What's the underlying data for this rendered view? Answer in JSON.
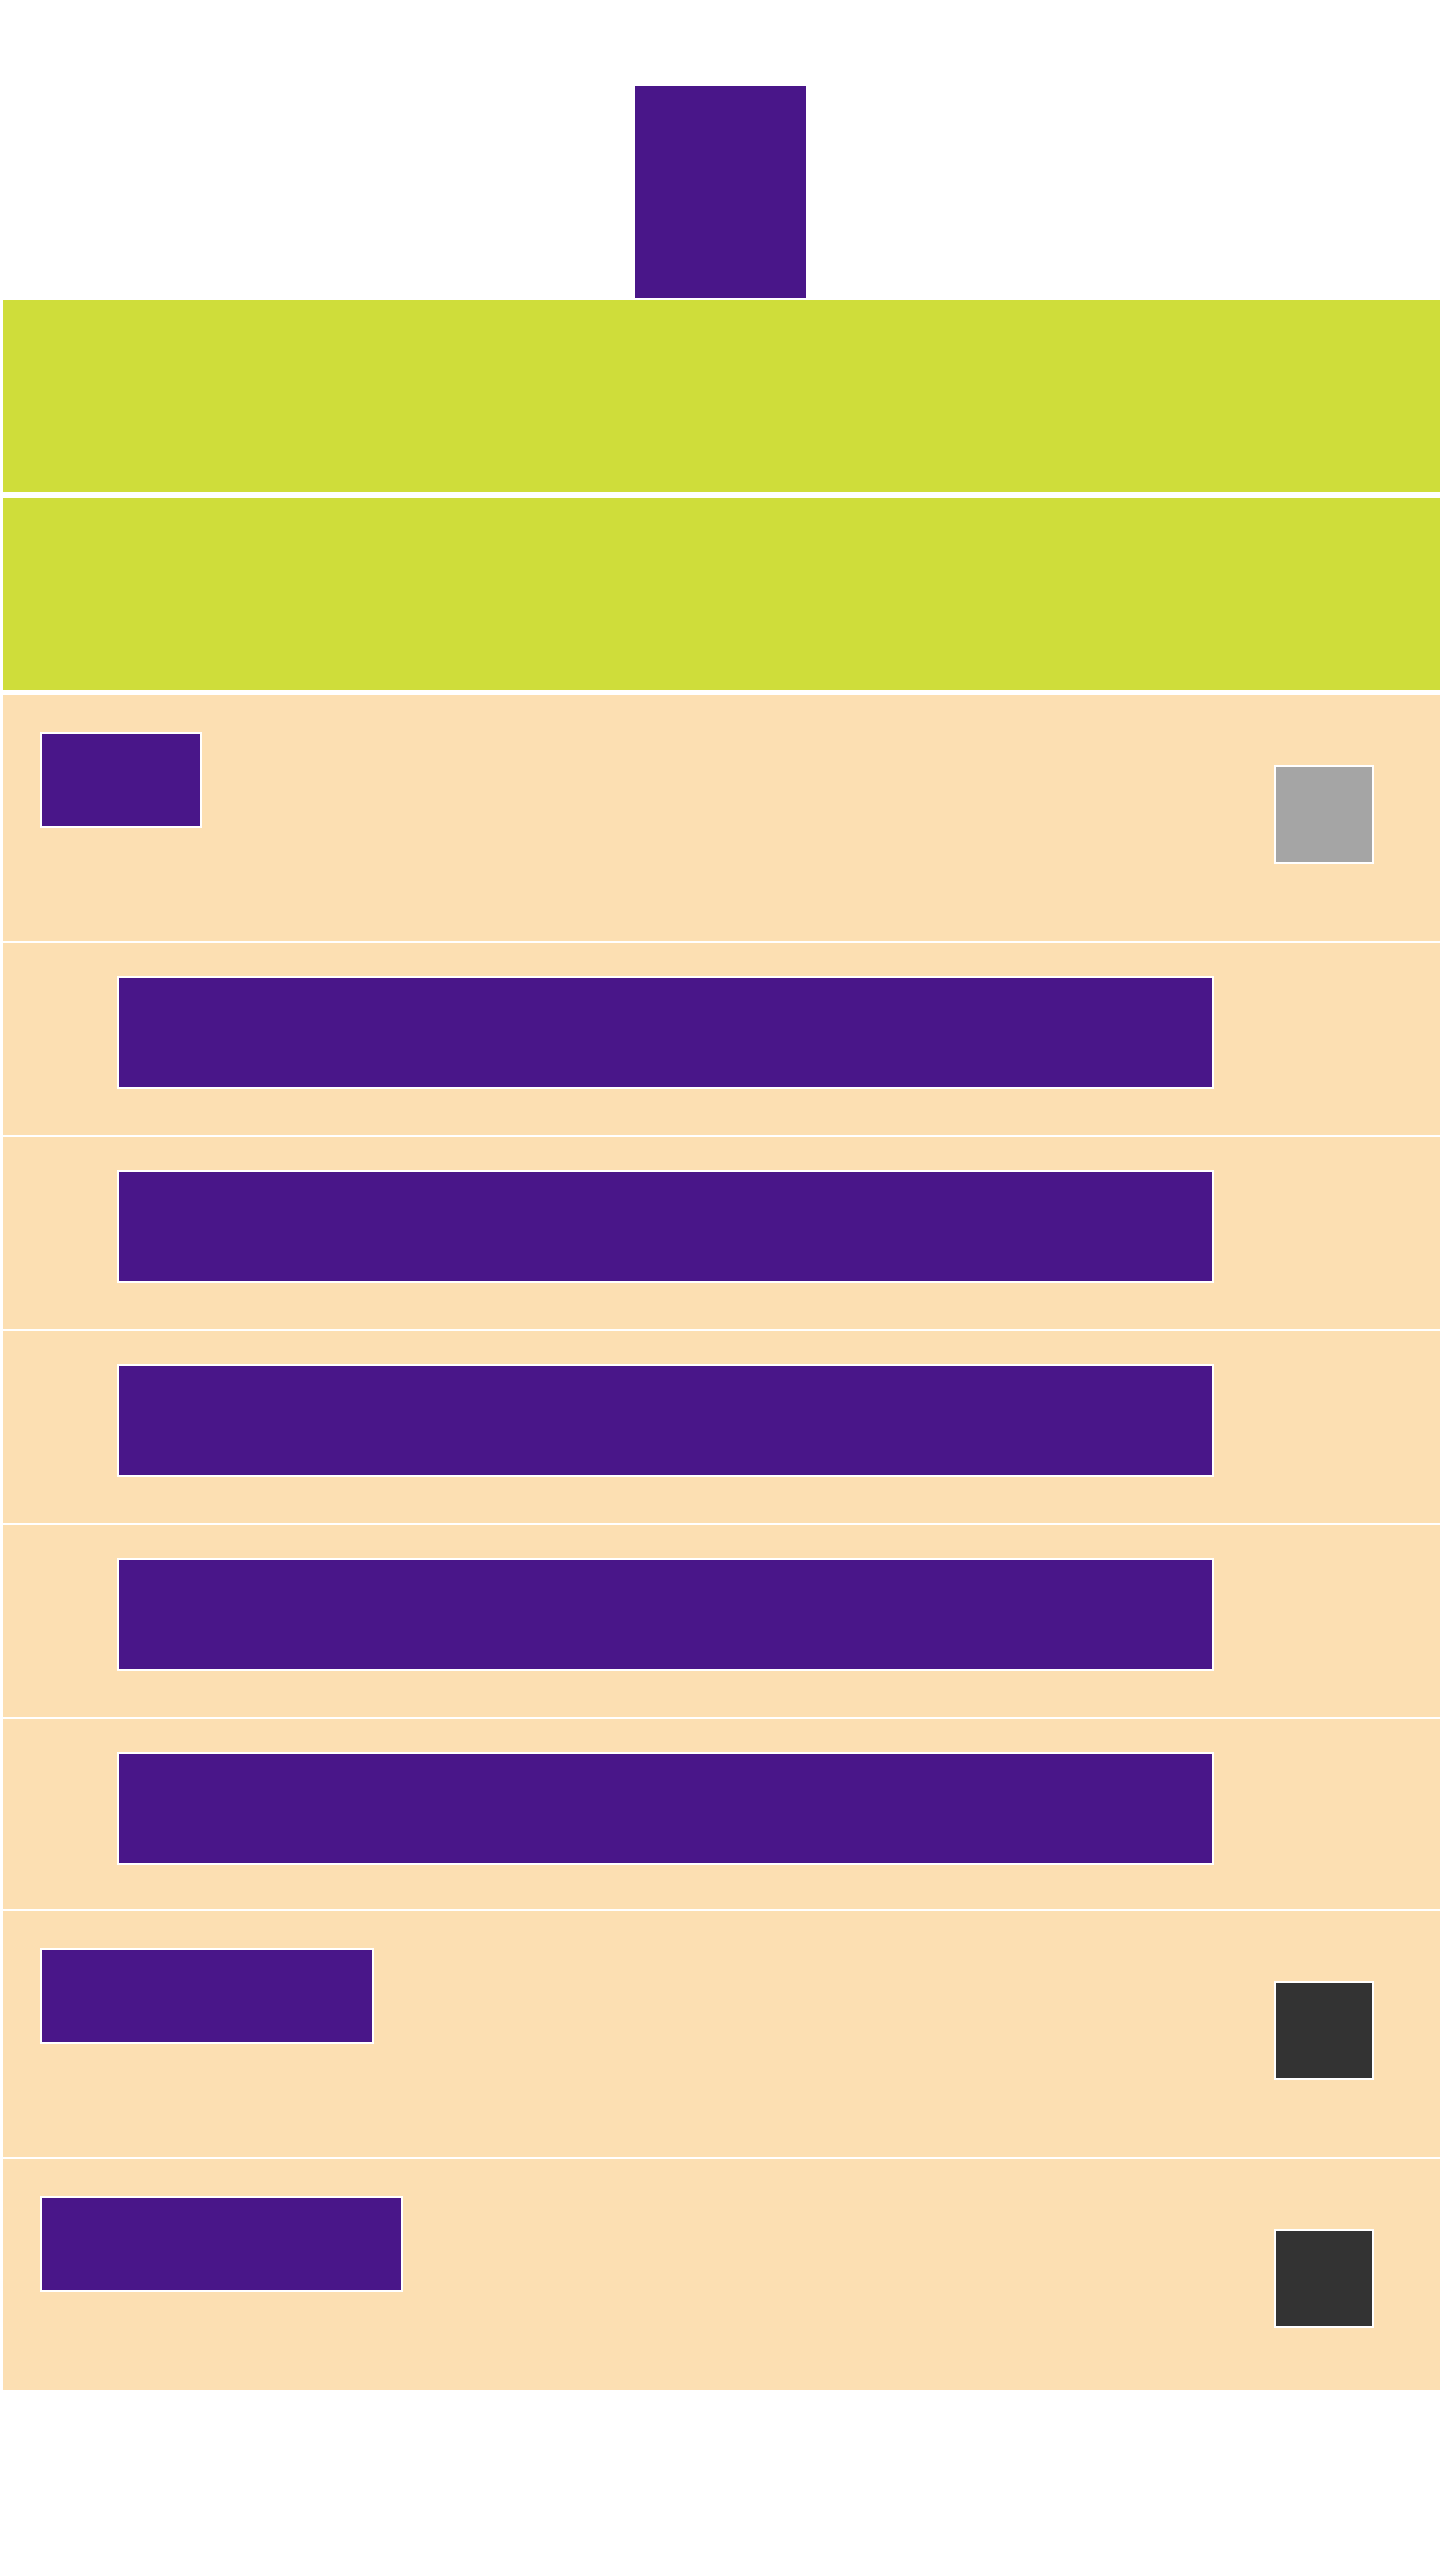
{
  "colors": {
    "accent": "#491689",
    "banner": "#cfdd3a",
    "row_background": "#fcdfb2",
    "divider": "#ffffff",
    "toggle_off": "#a5a5a5",
    "toggle_on": "#333333"
  },
  "header": {
    "logo_icon": "app-logo-icon"
  },
  "banners": [
    {
      "name": "banner-top"
    },
    {
      "name": "banner-bottom"
    }
  ],
  "settings": {
    "rows": [
      {
        "type": "toggle",
        "state": "off"
      },
      {
        "type": "child"
      },
      {
        "type": "child"
      },
      {
        "type": "child"
      },
      {
        "type": "child"
      },
      {
        "type": "child"
      },
      {
        "type": "toggle",
        "state": "on"
      },
      {
        "type": "toggle",
        "state": "on"
      }
    ]
  }
}
